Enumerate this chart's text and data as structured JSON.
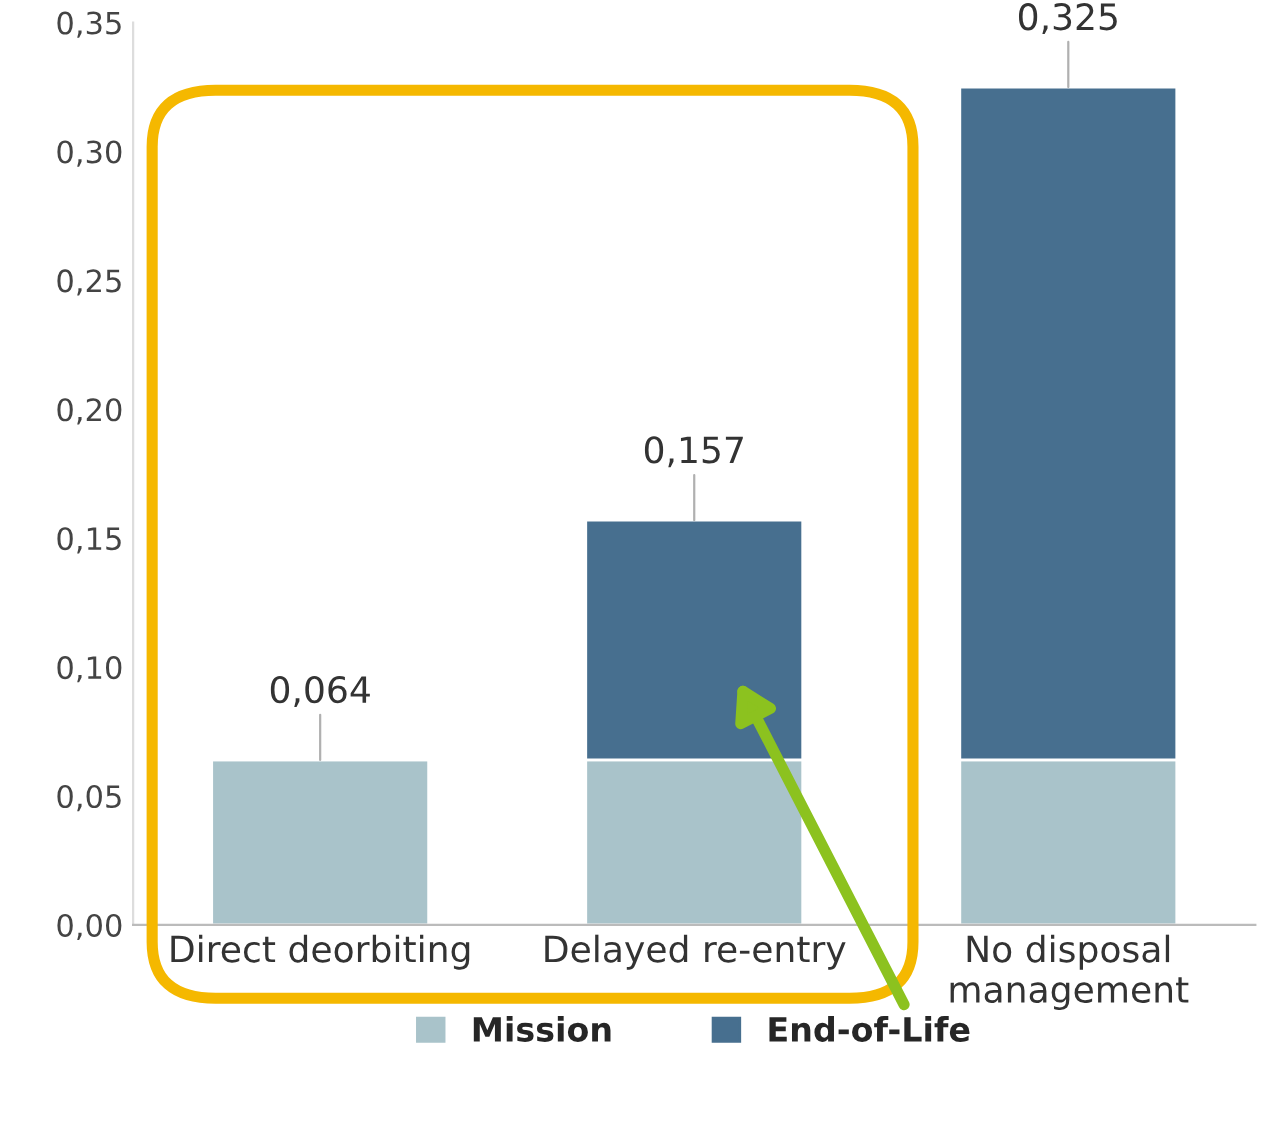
{
  "chart_data": {
    "type": "bar",
    "stacked": true,
    "categories": [
      "Direct deorbiting",
      "Delayed re-entry",
      "No disposal management"
    ],
    "series": [
      {
        "name": "Mission",
        "color": "#a9c3ca",
        "values": [
          0.064,
          0.064,
          0.064
        ]
      },
      {
        "name": "End-of-Life",
        "color": "#476f8f",
        "values": [
          null,
          0.093,
          0.261
        ]
      }
    ],
    "totals": [
      "0,064",
      "0,157",
      "0,325"
    ],
    "ylim": [
      0,
      0.35
    ],
    "yticks": [
      {
        "value": 0,
        "label": "0,00"
      },
      {
        "value": 0.05,
        "label": "0,05"
      },
      {
        "value": 0.1,
        "label": "0,10"
      },
      {
        "value": 0.15,
        "label": "0,15"
      },
      {
        "value": 0.2,
        "label": "0,20"
      },
      {
        "value": 0.25,
        "label": "0,25"
      },
      {
        "value": 0.3,
        "label": "0,30"
      },
      {
        "value": 0.35,
        "label": "0,35"
      }
    ],
    "grid": false,
    "legend": "bottom"
  }
}
